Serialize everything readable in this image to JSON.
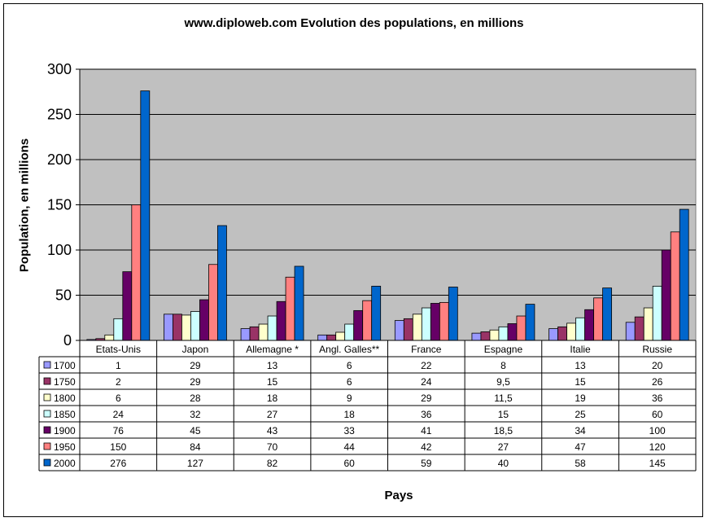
{
  "chart_data": {
    "type": "bar",
    "title": "www.diploweb.com Evolution des populations, en millions",
    "ylabel": "Population, en millions",
    "xlabel": "Pays",
    "ylim": [
      0,
      300
    ],
    "yticks": [
      0,
      50,
      100,
      150,
      200,
      250,
      300
    ],
    "grid": true,
    "legend": "data-table-left",
    "categories": [
      "Etats-Unis",
      "Japon",
      "Allemagne *",
      "Angl. Galles**",
      "France",
      "Espagne",
      "Italie",
      "Russie"
    ],
    "series": [
      {
        "name": "1700",
        "color": "#9999ff",
        "values": [
          1,
          29,
          13,
          6,
          22,
          8,
          13,
          20
        ],
        "labels": [
          "1",
          "29",
          "13",
          "6",
          "22",
          "8",
          "13",
          "20"
        ]
      },
      {
        "name": "1750",
        "color": "#993366",
        "values": [
          2,
          29,
          15,
          6,
          24,
          9.5,
          15,
          26
        ],
        "labels": [
          "2",
          "29",
          "15",
          "6",
          "24",
          "9,5",
          "15",
          "26"
        ]
      },
      {
        "name": "1800",
        "color": "#ffffcc",
        "values": [
          6,
          28,
          18,
          9,
          29,
          11.5,
          19,
          36
        ],
        "labels": [
          "6",
          "28",
          "18",
          "9",
          "29",
          "11,5",
          "19",
          "36"
        ]
      },
      {
        "name": "1850",
        "color": "#ccffff",
        "values": [
          24,
          32,
          27,
          18,
          36,
          15,
          25,
          60
        ],
        "labels": [
          "24",
          "32",
          "27",
          "18",
          "36",
          "15",
          "25",
          "60"
        ]
      },
      {
        "name": "1900",
        "color": "#660066",
        "values": [
          76,
          45,
          43,
          33,
          41,
          18.5,
          34,
          100
        ],
        "labels": [
          "76",
          "45",
          "43",
          "33",
          "41",
          "18,5",
          "34",
          "100"
        ]
      },
      {
        "name": "1950",
        "color": "#ff8080",
        "values": [
          150,
          84,
          70,
          44,
          42,
          27,
          47,
          120
        ],
        "labels": [
          "150",
          "84",
          "70",
          "44",
          "42",
          "27",
          "47",
          "120"
        ]
      },
      {
        "name": "2000",
        "color": "#0066cc",
        "values": [
          276,
          127,
          82,
          60,
          59,
          40,
          58,
          145
        ],
        "labels": [
          "276",
          "127",
          "82",
          "60",
          "59",
          "40",
          "58",
          "145"
        ]
      }
    ],
    "plot_background": "#c0c0c0"
  }
}
